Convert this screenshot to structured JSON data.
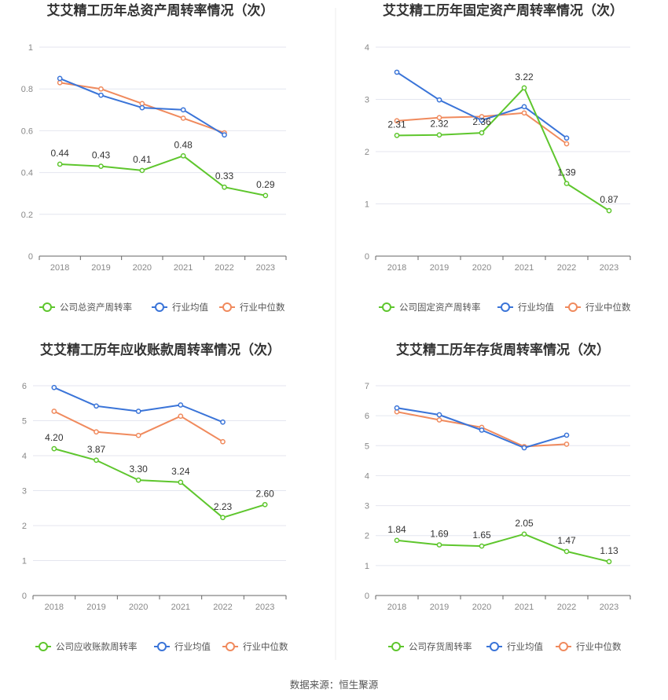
{
  "colors": {
    "company": "#5ec62d",
    "average": "#3a74d8",
    "median": "#f08a5d",
    "grid": "#e4e6ef",
    "axis": "#666666",
    "divider": "#eeeeee"
  },
  "source": "数据来源：恒生聚源",
  "chart_data": [
    {
      "type": "line",
      "title": "艾艾精工历年总资产周转率情况（次）",
      "categories": [
        "2018",
        "2019",
        "2020",
        "2021",
        "2022",
        "2023"
      ],
      "ylim": [
        0,
        1
      ],
      "yticks": [
        0,
        0.2,
        0.4,
        0.6,
        0.8,
        1
      ],
      "ytick_labels": [
        "0",
        "0.2",
        "0.4",
        "0.6",
        "0.8",
        "1"
      ],
      "series": [
        {
          "key": "company",
          "name": "公司总资产周转率",
          "values": [
            0.44,
            0.43,
            0.41,
            0.48,
            0.33,
            0.29
          ],
          "labels": [
            "0.44",
            "0.43",
            "0.41",
            "0.48",
            "0.33",
            "0.29"
          ]
        },
        {
          "key": "average",
          "name": "行业均值",
          "values": [
            0.85,
            0.77,
            0.71,
            0.7,
            0.58,
            null
          ]
        },
        {
          "key": "median",
          "name": "行业中位数",
          "values": [
            0.83,
            0.8,
            0.73,
            0.66,
            0.59,
            null
          ]
        }
      ]
    },
    {
      "type": "line",
      "title": "艾艾精工历年固定资产周转率情况（次）",
      "categories": [
        "2018",
        "2019",
        "2020",
        "2021",
        "2022",
        "2023"
      ],
      "ylim": [
        0,
        4
      ],
      "yticks": [
        0,
        1,
        2,
        3,
        4
      ],
      "ytick_labels": [
        "0",
        "1",
        "2",
        "3",
        "4"
      ],
      "series": [
        {
          "key": "company",
          "name": "公司固定资产周转率",
          "values": [
            2.31,
            2.32,
            2.36,
            3.22,
            1.39,
            0.87
          ],
          "labels": [
            "2.31",
            "2.32",
            "2.36",
            "3.22",
            "1.39",
            "0.87"
          ]
        },
        {
          "key": "average",
          "name": "行业均值",
          "values": [
            3.52,
            2.99,
            2.6,
            2.86,
            2.26,
            null
          ]
        },
        {
          "key": "median",
          "name": "行业中位数",
          "values": [
            2.59,
            2.65,
            2.67,
            2.74,
            2.15,
            null
          ]
        }
      ]
    },
    {
      "type": "line",
      "title": "艾艾精工历年应收账款周转率情况（次）",
      "categories": [
        "2018",
        "2019",
        "2020",
        "2021",
        "2022",
        "2023"
      ],
      "ylim": [
        0,
        6
      ],
      "yticks": [
        0,
        1,
        2,
        3,
        4,
        5,
        6
      ],
      "ytick_labels": [
        "0",
        "1",
        "2",
        "3",
        "4",
        "5",
        "6"
      ],
      "series": [
        {
          "key": "company",
          "name": "公司应收账款周转率",
          "values": [
            4.2,
            3.87,
            3.3,
            3.24,
            2.23,
            2.6
          ],
          "labels": [
            "4.20",
            "3.87",
            "3.30",
            "3.24",
            "2.23",
            "2.60"
          ]
        },
        {
          "key": "average",
          "name": "行业均值",
          "values": [
            5.95,
            5.42,
            5.27,
            5.45,
            4.96,
            null
          ]
        },
        {
          "key": "median",
          "name": "行业中位数",
          "values": [
            5.27,
            4.68,
            4.58,
            5.13,
            4.4,
            null
          ]
        }
      ]
    },
    {
      "type": "line",
      "title": "艾艾精工历年存货周转率情况（次）",
      "categories": [
        "2018",
        "2019",
        "2020",
        "2021",
        "2022",
        "2023"
      ],
      "ylim": [
        0,
        7
      ],
      "yticks": [
        0,
        1,
        2,
        3,
        4,
        5,
        6,
        7
      ],
      "ytick_labels": [
        "0",
        "1",
        "2",
        "3",
        "4",
        "5",
        "6",
        "7"
      ],
      "series": [
        {
          "key": "company",
          "name": "公司存货周转率",
          "values": [
            1.84,
            1.69,
            1.65,
            2.05,
            1.47,
            1.13
          ],
          "labels": [
            "1.84",
            "1.69",
            "1.65",
            "2.05",
            "1.47",
            "1.13"
          ]
        },
        {
          "key": "average",
          "name": "行业均值",
          "values": [
            6.26,
            6.03,
            5.52,
            4.93,
            5.35,
            null
          ]
        },
        {
          "key": "median",
          "name": "行业中位数",
          "values": [
            6.13,
            5.86,
            5.61,
            4.97,
            5.05,
            null
          ]
        }
      ]
    }
  ]
}
